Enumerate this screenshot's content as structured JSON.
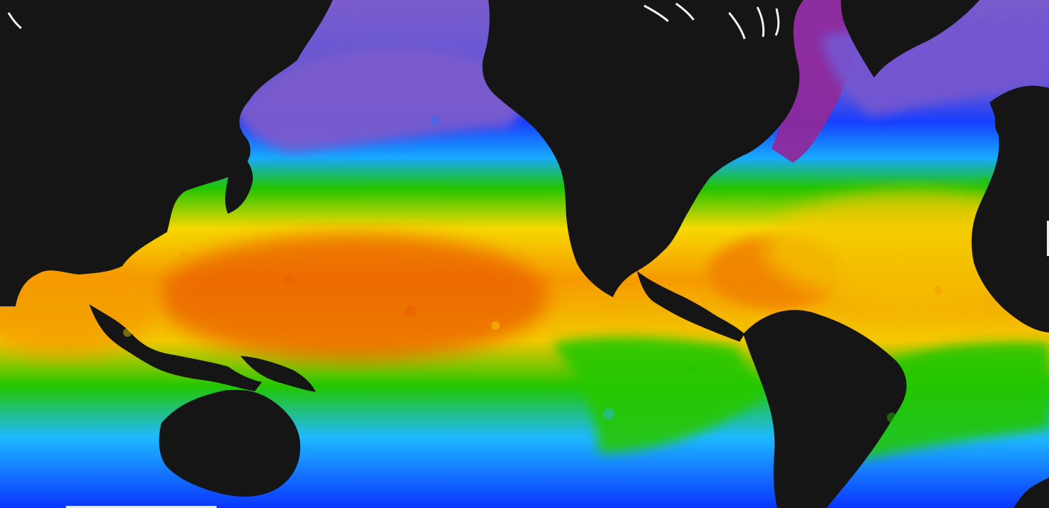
{
  "map": {
    "layer": "sea-surface-temperature",
    "colors": {
      "land": "#151515",
      "ice_edge": "#ffffff",
      "purple": "#7b5ccc",
      "magenta": "#8e2a9c",
      "deep_blue": "#0b3cff",
      "blue": "#1f6cff",
      "cyan": "#1fb9ff",
      "green": "#22c600",
      "yellow": "#f6d800",
      "orange": "#f59a00",
      "red_orange": "#ea5a00"
    }
  }
}
